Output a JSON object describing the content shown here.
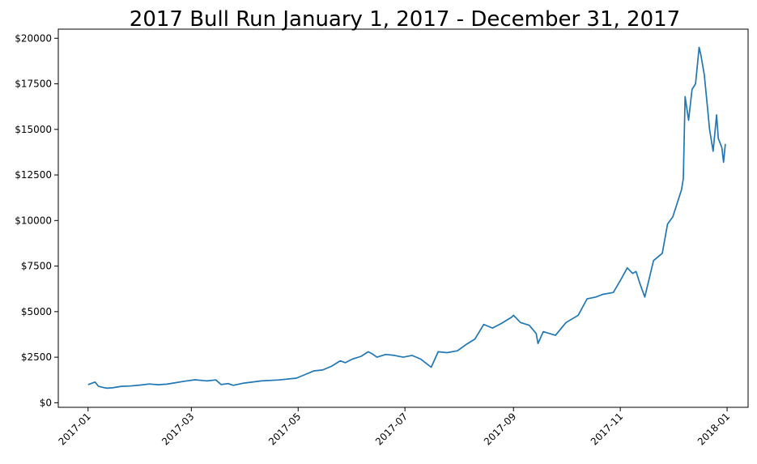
{
  "chart_data": {
    "type": "line",
    "title": "2017 Bull Run January 1, 2017 - December 31, 2017",
    "xlabel": "",
    "ylabel": "",
    "xlim": [
      "2016-12-15",
      "2018-01-13"
    ],
    "ylim": [
      -250,
      20500
    ],
    "x_ticks": [
      "2017-01",
      "2017-03",
      "2017-05",
      "2017-07",
      "2017-09",
      "2017-11",
      "2018-01"
    ],
    "y_ticks": [
      "$0",
      "$2500",
      "$5000",
      "$7500",
      "$10000",
      "$12500",
      "$15000",
      "$17500",
      "$20000"
    ],
    "grid": false,
    "legend": "none",
    "colors": {
      "line": "#1f77b4"
    },
    "series": [
      {
        "x": [
          "2017-01-01",
          "2017-01-05",
          "2017-01-07",
          "2017-01-10",
          "2017-01-12",
          "2017-01-15",
          "2017-01-20",
          "2017-01-25",
          "2017-01-31",
          "2017-02-05",
          "2017-02-10",
          "2017-02-15",
          "2017-02-20",
          "2017-02-25",
          "2017-03-03",
          "2017-03-10",
          "2017-03-15",
          "2017-03-18",
          "2017-03-22",
          "2017-03-25",
          "2017-03-31",
          "2017-04-10",
          "2017-04-20",
          "2017-04-30",
          "2017-05-05",
          "2017-05-10",
          "2017-05-15",
          "2017-05-20",
          "2017-05-25",
          "2017-05-28",
          "2017-06-01",
          "2017-06-06",
          "2017-06-10",
          "2017-06-12",
          "2017-06-15",
          "2017-06-20",
          "2017-06-25",
          "2017-06-30",
          "2017-07-05",
          "2017-07-10",
          "2017-07-16",
          "2017-07-20",
          "2017-07-25",
          "2017-07-31",
          "2017-08-05",
          "2017-08-10",
          "2017-08-15",
          "2017-08-20",
          "2017-08-25",
          "2017-08-31",
          "2017-09-01",
          "2017-09-05",
          "2017-09-10",
          "2017-09-14",
          "2017-09-15",
          "2017-09-18",
          "2017-09-25",
          "2017-10-01",
          "2017-10-08",
          "2017-10-13",
          "2017-10-18",
          "2017-10-22",
          "2017-10-28",
          "2017-11-01",
          "2017-11-05",
          "2017-11-08",
          "2017-11-10",
          "2017-11-12",
          "2017-11-15",
          "2017-11-20",
          "2017-11-25",
          "2017-11-28",
          "2017-12-01",
          "2017-12-05",
          "2017-12-06",
          "2017-12-07",
          "2017-12-08",
          "2017-12-10",
          "2017-12-12",
          "2017-12-14",
          "2017-12-16",
          "2017-12-17",
          "2017-12-19",
          "2017-12-21",
          "2017-12-22",
          "2017-12-24",
          "2017-12-26",
          "2017-12-27",
          "2017-12-29",
          "2017-12-30",
          "2017-12-31"
        ],
        "values": [
          998,
          1135,
          900,
          830,
          800,
          820,
          900,
          920,
          970,
          1030,
          990,
          1020,
          1100,
          1180,
          1260,
          1200,
          1250,
          1000,
          1050,
          960,
          1080,
          1200,
          1250,
          1350,
          1550,
          1750,
          1800,
          2000,
          2300,
          2200,
          2400,
          2550,
          2800,
          2700,
          2500,
          2650,
          2600,
          2500,
          2600,
          2400,
          1950,
          2800,
          2750,
          2850,
          3200,
          3500,
          4300,
          4100,
          4350,
          4700,
          4800,
          4400,
          4250,
          3800,
          3250,
          3900,
          3700,
          4400,
          4800,
          5700,
          5800,
          5950,
          6050,
          6700,
          7400,
          7100,
          7200,
          6600,
          5800,
          7800,
          8200,
          9800,
          10200,
          11400,
          11700,
          12300,
          16800,
          15500,
          17200,
          17500,
          19500,
          19100,
          18000,
          16000,
          15000,
          13800,
          15800,
          14500,
          14000,
          13200,
          14200
        ]
      }
    ]
  }
}
